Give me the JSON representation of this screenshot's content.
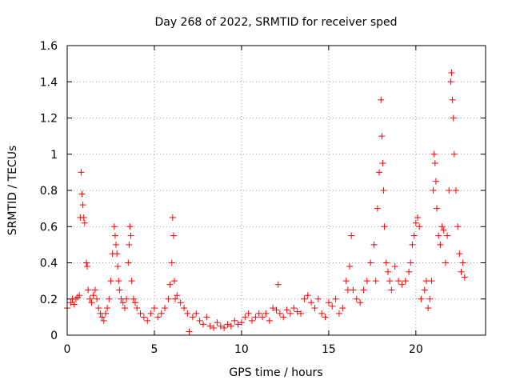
{
  "chart_data": {
    "type": "scatter",
    "title": "Day 268 of 2022, SRMTID for receiver sped",
    "xlabel": "GPS time / hours",
    "ylabel": "SRMTID / TECUs",
    "xlim": [
      0,
      24
    ],
    "ylim": [
      0,
      1.6
    ],
    "xticks": [
      0,
      5,
      10,
      15,
      20
    ],
    "xtick_labels": [
      "0",
      "5",
      "10",
      "15",
      "20"
    ],
    "yticks": [
      0,
      0.2,
      0.4,
      0.6,
      0.8,
      1,
      1.2,
      1.4,
      1.6
    ],
    "ytick_labels": [
      "0",
      "0.2",
      "0.4",
      "0.6",
      "0.8",
      "1",
      "1.2",
      "1.4",
      "1.6"
    ],
    "grid": true,
    "marker": "+",
    "series": [
      {
        "name": "SRMTID",
        "color": "#ff0000",
        "x": [
          0.0,
          0.2,
          0.3,
          0.4,
          0.5,
          0.6,
          0.7,
          0.75,
          0.8,
          0.85,
          0.9,
          0.95,
          1.0,
          1.1,
          1.15,
          1.2,
          1.3,
          1.4,
          1.5,
          1.6,
          1.7,
          1.8,
          1.9,
          2.0,
          2.1,
          2.2,
          2.3,
          2.4,
          2.5,
          2.6,
          2.7,
          2.75,
          2.8,
          2.85,
          2.9,
          2.95,
          3.0,
          3.1,
          3.2,
          3.3,
          3.4,
          3.5,
          3.55,
          3.6,
          3.65,
          3.7,
          3.8,
          3.9,
          4.0,
          4.2,
          4.4,
          4.6,
          4.8,
          5.0,
          5.2,
          5.4,
          5.6,
          5.8,
          5.9,
          6.0,
          6.05,
          6.1,
          6.15,
          6.2,
          6.3,
          6.5,
          6.7,
          6.9,
          7.0,
          7.2,
          7.4,
          7.6,
          7.8,
          8.0,
          8.2,
          8.4,
          8.6,
          8.8,
          9.0,
          9.2,
          9.4,
          9.6,
          9.8,
          10.0,
          10.2,
          10.4,
          10.6,
          10.8,
          11.0,
          11.2,
          11.4,
          11.6,
          11.8,
          12.0,
          12.1,
          12.2,
          12.4,
          12.6,
          12.8,
          13.0,
          13.2,
          13.4,
          13.6,
          13.8,
          14.0,
          14.2,
          14.4,
          14.6,
          14.8,
          15.0,
          15.2,
          15.4,
          15.6,
          15.8,
          16.0,
          16.1,
          16.2,
          16.3,
          16.4,
          16.6,
          16.8,
          17.0,
          17.2,
          17.4,
          17.6,
          17.7,
          17.8,
          17.9,
          18.0,
          18.05,
          18.1,
          18.15,
          18.2,
          18.3,
          18.4,
          18.5,
          18.6,
          18.8,
          19.0,
          19.2,
          19.4,
          19.6,
          19.7,
          19.8,
          19.9,
          20.0,
          20.1,
          20.2,
          20.3,
          20.5,
          20.6,
          20.7,
          20.8,
          20.9,
          21.0,
          21.05,
          21.1,
          21.15,
          21.2,
          21.3,
          21.4,
          21.5,
          21.6,
          21.7,
          21.8,
          21.9,
          22.0,
          22.05,
          22.1,
          22.15,
          22.2,
          22.3,
          22.4,
          22.5,
          22.6,
          22.7,
          22.8
        ],
        "y": [
          0.15,
          0.18,
          0.2,
          0.17,
          0.2,
          0.21,
          0.22,
          0.65,
          0.9,
          0.78,
          0.72,
          0.65,
          0.62,
          0.4,
          0.38,
          0.25,
          0.2,
          0.18,
          0.22,
          0.25,
          0.2,
          0.15,
          0.12,
          0.1,
          0.08,
          0.12,
          0.15,
          0.2,
          0.3,
          0.45,
          0.6,
          0.55,
          0.5,
          0.45,
          0.38,
          0.3,
          0.25,
          0.2,
          0.18,
          0.15,
          0.2,
          0.4,
          0.5,
          0.6,
          0.55,
          0.3,
          0.2,
          0.18,
          0.15,
          0.12,
          0.1,
          0.08,
          0.12,
          0.15,
          0.1,
          0.12,
          0.15,
          0.2,
          0.28,
          0.4,
          0.65,
          0.55,
          0.3,
          0.2,
          0.22,
          0.18,
          0.15,
          0.12,
          0.02,
          0.1,
          0.12,
          0.08,
          0.06,
          0.1,
          0.05,
          0.04,
          0.07,
          0.05,
          0.04,
          0.06,
          0.05,
          0.08,
          0.06,
          0.07,
          0.1,
          0.12,
          0.08,
          0.1,
          0.12,
          0.1,
          0.12,
          0.08,
          0.15,
          0.14,
          0.28,
          0.12,
          0.1,
          0.14,
          0.12,
          0.15,
          0.13,
          0.12,
          0.2,
          0.22,
          0.18,
          0.15,
          0.2,
          0.12,
          0.1,
          0.18,
          0.16,
          0.2,
          0.12,
          0.15,
          0.3,
          0.25,
          0.38,
          0.55,
          0.25,
          0.2,
          0.18,
          0.25,
          0.3,
          0.4,
          0.5,
          0.3,
          0.7,
          0.9,
          1.3,
          1.1,
          0.95,
          0.8,
          0.6,
          0.4,
          0.35,
          0.3,
          0.25,
          0.38,
          0.3,
          0.28,
          0.3,
          0.35,
          0.4,
          0.5,
          0.55,
          0.62,
          0.65,
          0.6,
          0.2,
          0.25,
          0.3,
          0.15,
          0.2,
          0.3,
          0.8,
          1.0,
          0.95,
          0.85,
          0.7,
          0.55,
          0.5,
          0.6,
          0.58,
          0.4,
          0.55,
          0.8,
          1.4,
          1.45,
          1.3,
          1.2,
          1.0,
          0.8,
          0.6,
          0.45,
          0.35,
          0.4,
          0.32
        ]
      }
    ]
  }
}
